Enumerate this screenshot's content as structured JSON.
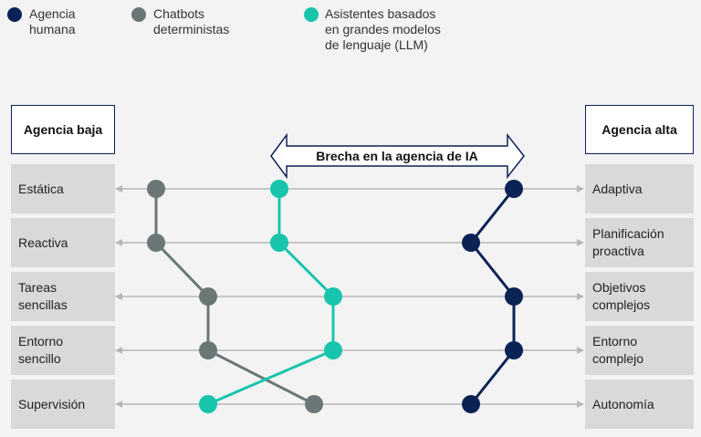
{
  "legend": [
    {
      "label": "Agencia\nhumana",
      "color": "#0b2255"
    },
    {
      "label": "Chatbots\ndeterministas",
      "color": "#6b7777"
    },
    {
      "label": "Asistentes basados\nen grandes modelos\nde lenguaje (LLM)",
      "color": "#18c4ac"
    }
  ],
  "left_header": "Agencia baja",
  "right_header": "Agencia alta",
  "gap_label": "Brecha en la agencia de IA",
  "rows": [
    {
      "left": "Estática",
      "right": "Adaptiva"
    },
    {
      "left": "Reactiva",
      "right": "Planificación\nproactiva"
    },
    {
      "left": "Tareas\nsencillas",
      "right": "Objetivos\ncomplejos"
    },
    {
      "left": "Entorno\nsencillo",
      "right": "Entorno\ncomplejo"
    },
    {
      "left": "Supervisión",
      "right": "Autonomía"
    }
  ]
}
